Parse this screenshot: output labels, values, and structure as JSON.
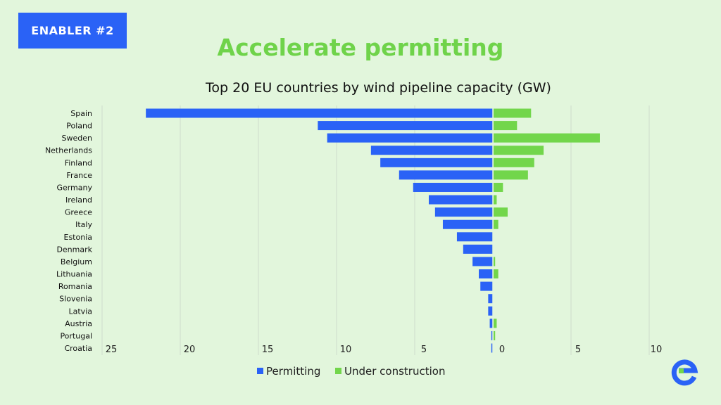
{
  "badge": "ENABLER #2",
  "title": "Accelerate permitting",
  "colors": {
    "permitting": "#2a62f6",
    "construction": "#72d64b",
    "background": "#e2f6dc"
  },
  "chart_data": {
    "type": "bar",
    "orientation": "horizontal-diverging",
    "title": "Top 20 EU countries by wind pipeline capacity (GW)",
    "categories": [
      "Spain",
      "Poland",
      "Sweden",
      "Netherlands",
      "Finland",
      "France",
      "Germany",
      "Ireland",
      "Greece",
      "Italy",
      "Estonia",
      "Denmark",
      "Belgium",
      "Lithuania",
      "Romania",
      "Slovenia",
      "Latvia",
      "Austria",
      "Portugal",
      "Croatia"
    ],
    "series": [
      {
        "name": "Permitting",
        "side": "left",
        "values": [
          22.2,
          11.2,
          10.6,
          7.8,
          7.2,
          6.0,
          5.1,
          4.1,
          3.7,
          3.2,
          2.3,
          1.9,
          1.3,
          0.9,
          0.8,
          0.3,
          0.3,
          0.2,
          0.1,
          0.1
        ]
      },
      {
        "name": "Under construction",
        "side": "right",
        "values": [
          2.4,
          1.5,
          6.8,
          3.2,
          2.6,
          2.2,
          0.6,
          0.2,
          0.9,
          0.3,
          0,
          0,
          0.1,
          0.3,
          0,
          0,
          0,
          0.2,
          0.1,
          0
        ]
      }
    ],
    "left_ticks": [
      "25",
      "20",
      "15",
      "10",
      "5",
      "0"
    ],
    "right_ticks": [
      "5",
      "10"
    ],
    "xlim": [
      -25,
      10
    ],
    "grid": true,
    "legend": "bottom-center"
  }
}
